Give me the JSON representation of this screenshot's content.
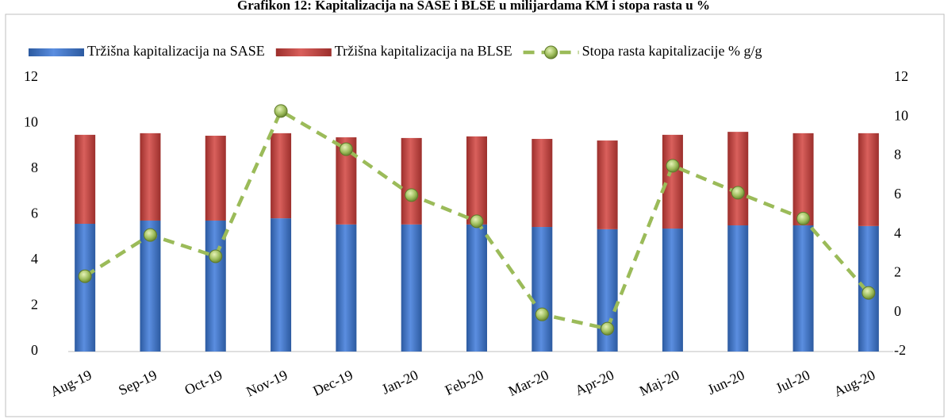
{
  "chart_data": {
    "type": "bar_line",
    "title": "Grafikon 12: Kapitalizacija na SASE i BLSE u milijardama KM i stopa rasta u %",
    "categories": [
      "Aug-19",
      "Sep-19",
      "Oct-19",
      "Nov-19",
      "Dec-19",
      "Jan-20",
      "Feb-20",
      "Mar-20",
      "Apr-20",
      "Maj-20",
      "Jun-20",
      "Jul-20",
      "Aug-20"
    ],
    "series": [
      {
        "name": "Tržišna kapitalizacija na SASE",
        "type": "bar",
        "color": "#4472c4",
        "values": [
          5.6,
          5.74,
          5.74,
          5.84,
          5.57,
          5.57,
          5.57,
          5.46,
          5.36,
          5.39,
          5.53,
          5.53,
          5.5
        ]
      },
      {
        "name": "Tržišna kapitalizacija na BLSE",
        "type": "bar",
        "color": "#c0504d",
        "values": [
          3.9,
          3.83,
          3.72,
          3.73,
          3.82,
          3.79,
          3.86,
          3.86,
          3.89,
          4.11,
          4.1,
          4.04,
          4.07
        ]
      },
      {
        "name": "Stopa rasta kapitalizacije % g/g",
        "type": "line",
        "axis": "y2",
        "color": "#9bbb59",
        "values": [
          1.85,
          3.96,
          2.87,
          10.3,
          8.35,
          6.0,
          4.66,
          -0.1,
          -0.83,
          7.5,
          6.12,
          4.8,
          1.0
        ]
      }
    ],
    "stacked": true,
    "ylim": [
      0,
      12
    ],
    "yticks": [
      0,
      2,
      4,
      6,
      8,
      10,
      12
    ],
    "y2lim": [
      -2,
      12
    ],
    "y2ticks": [
      -2,
      0,
      2,
      4,
      6,
      8,
      10,
      12
    ],
    "legend": "top"
  }
}
